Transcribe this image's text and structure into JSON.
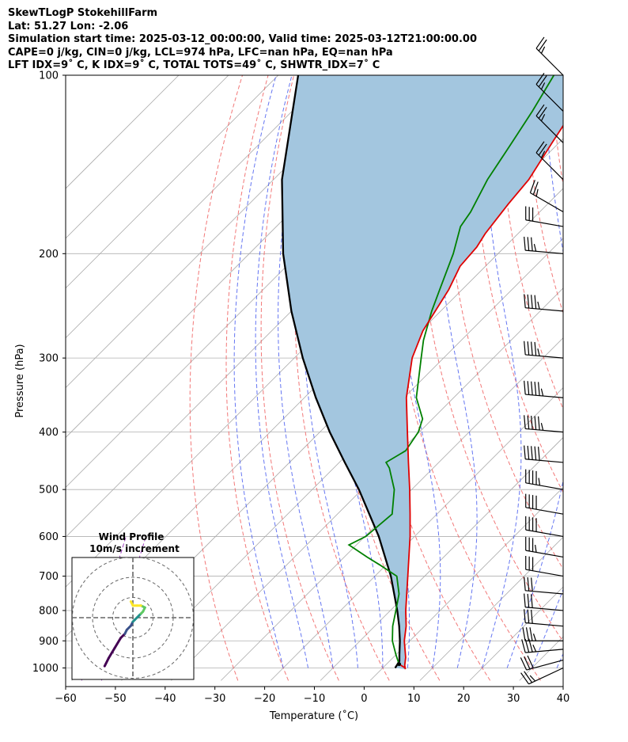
{
  "header": {
    "line1": "SkewTLogP StokehillFarm",
    "line2": "Lat: 51.27   Lon: -2.06",
    "line3": "Simulation start time: 2025-03-12_00:00:00, Valid time: 2025-03-12T21:00:00.00",
    "line4": "CAPE=0 j/kg, CIN=0 j/kg, LCL=974 hPa, LFC=nan hPa, EQ=nan hPa",
    "line5": "LFT IDX=9˚ C, K IDX=9˚ C, TOTAL TOTS=49˚ C, SHWTR_IDX=7˚ C"
  },
  "chart_data": {
    "type": "line",
    "xlabel": "Temperature (˚C)",
    "ylabel": "Pressure (hPa)",
    "xlim": [
      -60,
      40
    ],
    "ylim": [
      1050,
      100
    ],
    "y_scale": "log",
    "skew": true,
    "grid": true,
    "x_ticks": [
      -60,
      -50,
      -40,
      -30,
      -20,
      -10,
      0,
      10,
      20,
      30,
      40
    ],
    "y_ticks": [
      1000,
      900,
      800,
      700,
      600,
      500,
      400,
      300,
      200,
      100
    ],
    "x_tick_labels": [
      "−60",
      "−50",
      "−40",
      "−30",
      "−20",
      "−10",
      "0",
      "10",
      "20",
      "30",
      "40"
    ],
    "y_tick_labels": [
      "1000",
      "900",
      "800",
      "700",
      "600",
      "500",
      "400",
      "300",
      "200",
      "100"
    ],
    "colors": {
      "temperature": "#e00000",
      "dewpoint": "#008000",
      "parcel": "#000000",
      "shade": "#a3c6df",
      "dry_adiabat": "#f06060",
      "moist_adiabat": "#4a5ef0",
      "isotherm": "#aaaaaa",
      "mixing_ratio": "#a040c0",
      "grid": "#b0b0b0"
    },
    "series": [
      {
        "key": "temperature",
        "p": [
          985,
          1000,
          1005,
          990,
          960,
          900,
          850,
          800,
          700,
          600,
          550,
          500,
          450,
          400,
          350,
          300,
          270,
          230,
          210,
          195,
          185,
          165,
          150,
          130,
          115,
          100
        ],
        "t": [
          2.5,
          4.5,
          4.8,
          3.9,
          2.5,
          -1.1,
          -3.7,
          -6.9,
          -13.4,
          -20.9,
          -25.4,
          -30.4,
          -36.1,
          -42.4,
          -49.5,
          -56.3,
          -59.6,
          -62.7,
          -65.1,
          -65.6,
          -66.6,
          -67.9,
          -68.7,
          -71.4,
          -73.6,
          -76.9
        ]
      },
      {
        "key": "dewpoint",
        "p": [
          985,
          950,
          900,
          850,
          800,
          750,
          700,
          670,
          650,
          620,
          600,
          550,
          500,
          460,
          450,
          430,
          400,
          380,
          350,
          300,
          280,
          250,
          230,
          200,
          180,
          170,
          150,
          130,
          115,
          100
        ],
        "t": [
          2.5,
          0.0,
          -3.5,
          -6.4,
          -8.9,
          -11.6,
          -15.6,
          -21.3,
          -25.4,
          -31.5,
          -29.8,
          -29.0,
          -33.5,
          -38.8,
          -40.6,
          -39.0,
          -40.2,
          -42.0,
          -47.5,
          -54.5,
          -57.6,
          -61.8,
          -64.5,
          -69.0,
          -73.0,
          -73.9,
          -77.0,
          -79.5,
          -81.7,
          -84.6
        ]
      },
      {
        "key": "parcel",
        "p": [
          1000,
          974,
          950,
          900,
          850,
          800,
          700,
          600,
          500,
          450,
          400,
          350,
          300,
          250,
          200,
          150,
          100
        ],
        "t": [
          2.5,
          2.0,
          0.7,
          -2.0,
          -5.1,
          -8.6,
          -16.8,
          -27.2,
          -40.6,
          -48.9,
          -58.0,
          -67.7,
          -78.3,
          -90.0,
          -103.2,
          -118.3,
          -136.0
        ]
      }
    ],
    "wind_barbs": {
      "p": [
        1000,
        970,
        930,
        900,
        850,
        800,
        750,
        700,
        650,
        600,
        550,
        500,
        450,
        400,
        350,
        300,
        250,
        200,
        180,
        170,
        150,
        130,
        115,
        100
      ],
      "speed_kt": [
        25,
        30,
        35,
        35,
        30,
        30,
        30,
        30,
        35,
        40,
        40,
        45,
        50,
        55,
        55,
        45,
        45,
        35,
        30,
        25,
        25,
        25,
        25,
        25
      ],
      "direction_deg": [
        245,
        255,
        265,
        270,
        275,
        275,
        275,
        280,
        280,
        280,
        280,
        280,
        275,
        275,
        275,
        275,
        275,
        275,
        280,
        300,
        315,
        315,
        315,
        315
      ]
    },
    "hodograph": {
      "title": "Wind Profile",
      "subtitle": "10m/s increment",
      "rings": [
        10,
        20,
        30
      ],
      "u": [
        -14,
        -12,
        -9,
        -6,
        -4,
        -3,
        -1,
        0,
        1,
        2,
        3,
        4,
        5,
        6,
        4,
        2,
        0,
        -1
      ],
      "v": [
        -24,
        -20,
        -15,
        -10,
        -8,
        -6,
        -4,
        -2,
        -1,
        0,
        1,
        2,
        3,
        5,
        6,
        6,
        6,
        8
      ],
      "colormap": "viridis"
    }
  }
}
